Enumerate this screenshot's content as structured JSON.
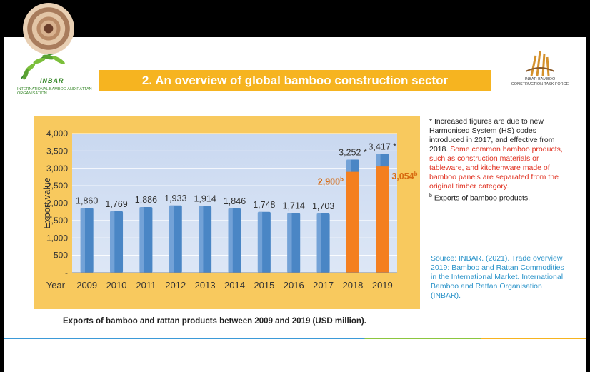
{
  "slide": {
    "title": "2. An overview of global bamboo construction sector",
    "logo_left": {
      "brand": "INBAR",
      "org": "INTERNATIONAL BAMBOO AND RATTAN ORGANISATION"
    },
    "logo_right": {
      "line1": "INBAR BAMBOO",
      "line2": "CONSTRUCTION TASK FORCE"
    },
    "notes": {
      "line1": "* Increased figures are due to new Harmonised System (HS) codes introduced in 2017, and effective from 2018.",
      "line1_red": "Some common bamboo products, such as construction materials or tableware, and kitchenware made of bamboo panels are separated from the original timber category.",
      "b_marker": "b",
      "line2": "Exports of bamboo products."
    },
    "source": "Source: INBAR. (2021). Trade overview 2019: Bamboo and Rattan Commodities in the International Market. International Bamboo and Rattan Organisation (INBAR).",
    "caption": "Exports of bamboo and rattan products between 2009 and 2019 (USD million)."
  },
  "chart_data": {
    "type": "bar",
    "ylabel": "Export value",
    "xlabel": "Year",
    "categories": [
      "2009",
      "2010",
      "2011",
      "2012",
      "2013",
      "2014",
      "2015",
      "2016",
      "2017",
      "2018",
      "2019"
    ],
    "series": [
      {
        "values": [
          1860,
          1769,
          1886,
          1933,
          1914,
          1846,
          1748,
          1714,
          1703,
          3252,
          3417
        ],
        "labels": [
          "1,860",
          "1,769",
          "1,886",
          "1,933",
          "1,914",
          "1,846",
          "1,748",
          "1,714",
          "1,703",
          "3,252 *",
          "3,417 *"
        ],
        "color": "#4a86c5"
      },
      {
        "values": [
          null,
          null,
          null,
          null,
          null,
          null,
          null,
          null,
          null,
          2900,
          3054
        ],
        "labels": [
          "",
          "",
          "",
          "",
          "",
          "",
          "",
          "",
          "",
          "2,900",
          "3,054"
        ],
        "superscript": "b",
        "color": "#f47f1f"
      }
    ],
    "ylim": [
      0,
      4000
    ],
    "yticks": [
      0,
      500,
      1000,
      1500,
      2000,
      2500,
      3000,
      3500,
      4000
    ],
    "ytick_labels": [
      "-",
      "500",
      "1,000",
      "1,500",
      "2,000",
      "2,500",
      "3,000",
      "3,500",
      "4,000"
    ],
    "grid": true
  }
}
